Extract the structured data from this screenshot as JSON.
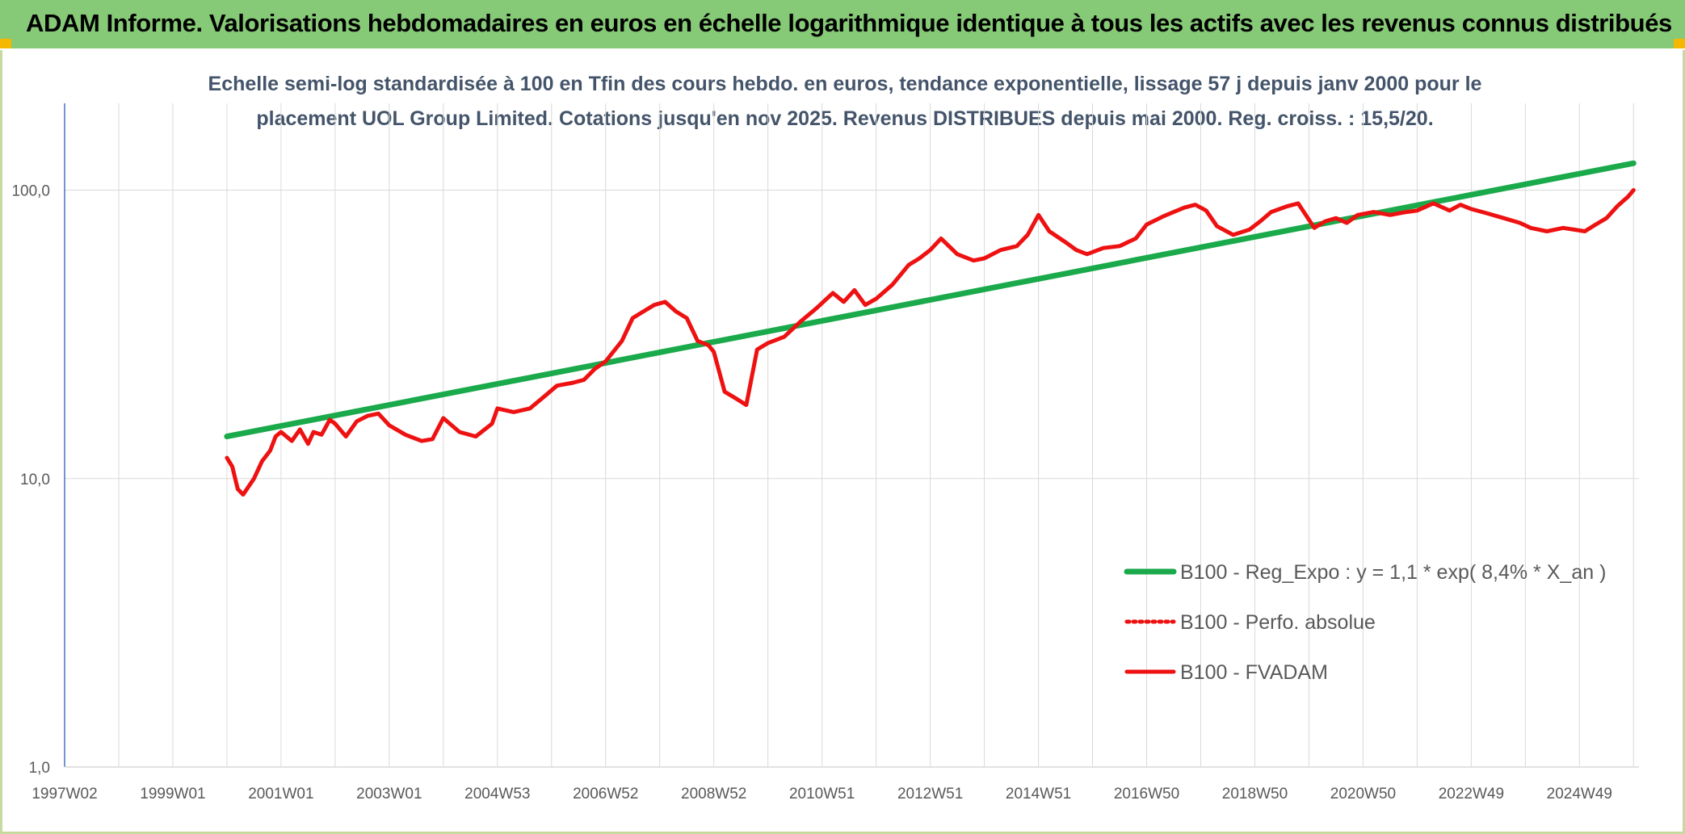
{
  "header": {
    "title": "ADAM Informe. Valorisations hebdomadaires en euros en échelle logarithmique identique à tous les actifs avec les revenus connus distribués"
  },
  "colors": {
    "header_bg": "#86c976",
    "corner_accent": "#f5b800",
    "regression": "#1aaa4b",
    "fvadam": "#ee1111",
    "grid": "#d9d9d9",
    "axis": "#4472c4"
  },
  "chart_data": {
    "type": "line",
    "title_line1": "Echelle semi-log standardisée à 100 en Tfin des cours hebdo. en euros, tendance exponentielle, lissage 57 j depuis janv 2000 pour le",
    "title_line2": "placement UOL Group Limited. Cotations jusqu'en nov 2025. Revenus DISTRIBUES depuis mai 2000. Reg. croiss. : 15,5/20.",
    "y_scale": "log",
    "ylim": [
      1,
      200
    ],
    "xlim": [
      1997.0,
      2026.1
    ],
    "y_ticks": [
      {
        "value": 1,
        "label": "1,0"
      },
      {
        "value": 10,
        "label": "10,0"
      },
      {
        "value": 100,
        "label": "100,0"
      }
    ],
    "x_ticks": [
      {
        "value": 1997.0,
        "label": "1997W02"
      },
      {
        "value": 1999.0,
        "label": "1999W01"
      },
      {
        "value": 2001.0,
        "label": "2001W01"
      },
      {
        "value": 2003.0,
        "label": "2003W01"
      },
      {
        "value": 2005.0,
        "label": "2004W53"
      },
      {
        "value": 2007.0,
        "label": "2006W52"
      },
      {
        "value": 2009.0,
        "label": "2008W52"
      },
      {
        "value": 2011.0,
        "label": "2010W51"
      },
      {
        "value": 2013.0,
        "label": "2012W51"
      },
      {
        "value": 2015.0,
        "label": "2014W51"
      },
      {
        "value": 2017.0,
        "label": "2016W50"
      },
      {
        "value": 2019.0,
        "label": "2018W50"
      },
      {
        "value": 2021.0,
        "label": "2020W50"
      },
      {
        "value": 2023.0,
        "label": "2022W49"
      },
      {
        "value": 2025.0,
        "label": "2024W49"
      }
    ],
    "legend_position": "bottom-right",
    "grid": true,
    "series": [
      {
        "name": "B100 - Reg_Expo : y = 1,1 * exp( 8,4% *  X_an )",
        "style": "solid-thick",
        "color": "#1aaa4b",
        "x": [
          2000.0,
          2026.0
        ],
        "y": [
          14.0,
          124.0
        ]
      },
      {
        "name": "B100 - Perfo. absolue",
        "style": "dotted",
        "color": "#ee1111",
        "x": [],
        "y": []
      },
      {
        "name": "B100 - FVADAM",
        "style": "solid",
        "color": "#ee1111",
        "x": [
          2000.0,
          2000.1,
          2000.2,
          2000.3,
          2000.5,
          2000.65,
          2000.8,
          2000.9,
          2001.0,
          2001.2,
          2001.35,
          2001.5,
          2001.6,
          2001.75,
          2001.9,
          2002.0,
          2002.2,
          2002.4,
          2002.6,
          2002.8,
          2003.0,
          2003.3,
          2003.6,
          2003.8,
          2004.0,
          2004.3,
          2004.6,
          2004.9,
          2005.0,
          2005.3,
          2005.6,
          2005.9,
          2006.1,
          2006.4,
          2006.6,
          2006.8,
          2007.0,
          2007.3,
          2007.5,
          2007.7,
          2007.9,
          2008.1,
          2008.3,
          2008.5,
          2008.7,
          2008.9,
          2009.0,
          2009.2,
          2009.4,
          2009.6,
          2009.8,
          2010.0,
          2010.3,
          2010.6,
          2010.9,
          2011.2,
          2011.4,
          2011.6,
          2011.8,
          2012.0,
          2012.3,
          2012.6,
          2012.8,
          2013.0,
          2013.2,
          2013.5,
          2013.8,
          2014.0,
          2014.3,
          2014.6,
          2014.8,
          2015.0,
          2015.2,
          2015.5,
          2015.7,
          2015.9,
          2016.2,
          2016.5,
          2016.8,
          2017.0,
          2017.3,
          2017.5,
          2017.7,
          2017.9,
          2018.1,
          2018.3,
          2018.6,
          2018.9,
          2019.1,
          2019.3,
          2019.6,
          2019.8,
          2020.1,
          2020.3,
          2020.5,
          2020.7,
          2020.9,
          2021.2,
          2021.5,
          2021.8,
          2022.0,
          2022.3,
          2022.6,
          2022.8,
          2023.0,
          2023.3,
          2023.6,
          2023.9,
          2024.1,
          2024.4,
          2024.7,
          2024.9,
          2025.1,
          2025.3,
          2025.5,
          2025.7,
          2025.9,
          2026.0
        ],
        "y": [
          11.8,
          11.0,
          9.2,
          8.8,
          10.0,
          11.5,
          12.5,
          14.0,
          14.5,
          13.5,
          14.8,
          13.2,
          14.5,
          14.2,
          16.0,
          15.5,
          14.0,
          15.8,
          16.5,
          16.8,
          15.3,
          14.2,
          13.5,
          13.7,
          16.2,
          14.5,
          14.0,
          15.5,
          17.5,
          17.0,
          17.5,
          19.5,
          21.0,
          21.5,
          22.0,
          24.0,
          25.5,
          30.0,
          36.0,
          38.0,
          40.0,
          41.0,
          38.0,
          36.0,
          30.0,
          29.0,
          27.5,
          20.0,
          19.0,
          18.0,
          28.0,
          29.5,
          31.0,
          35.0,
          39.0,
          44.0,
          41.0,
          45.0,
          40.0,
          42.0,
          47.0,
          55.0,
          58.0,
          62.0,
          68.0,
          60.0,
          57.0,
          58.0,
          62.0,
          64.0,
          70.0,
          82.0,
          72.0,
          66.0,
          62.0,
          60.0,
          63.0,
          64.0,
          68.0,
          76.0,
          81.0,
          84.0,
          87.0,
          89.0,
          85.0,
          75.0,
          70.0,
          73.0,
          78.0,
          84.0,
          88.0,
          90.0,
          74.0,
          78.0,
          80.0,
          77.0,
          82.0,
          84.0,
          82.0,
          84.0,
          85.0,
          90.0,
          85.0,
          89.0,
          86.0,
          83.0,
          80.0,
          77.0,
          74.0,
          72.0,
          74.0,
          73.0,
          72.0,
          76.0,
          80.0,
          88.0,
          95.0,
          100.0
        ]
      }
    ]
  }
}
